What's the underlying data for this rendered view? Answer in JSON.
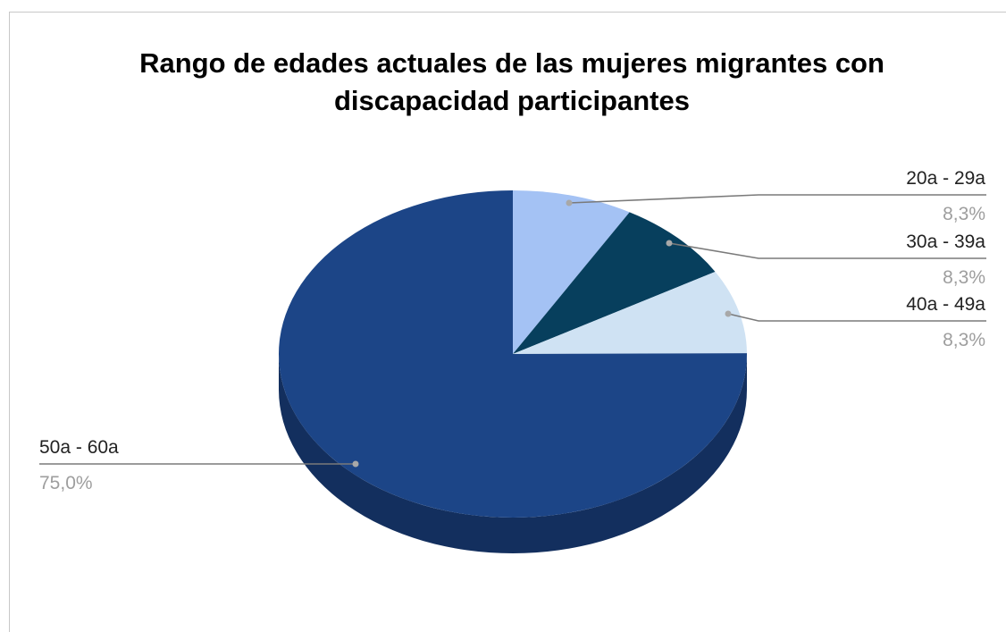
{
  "chart_data": {
    "type": "pie",
    "title_lines": [
      "Rango de edades actuales de las mujeres migrantes con",
      "discapacidad participantes"
    ],
    "three_d": true,
    "start_angle_deg": 0,
    "direction": "clockwise",
    "slices": [
      {
        "label": "20a - 29a",
        "value": 8.3,
        "percent_label": "8,3%",
        "color": "#a4c2f4",
        "side_color": "#7f9bcf"
      },
      {
        "label": "30a - 39a",
        "value": 8.3,
        "percent_label": "8,3%",
        "color": "#073f5d",
        "side_color": "#042b40"
      },
      {
        "label": "40a - 49a",
        "value": 8.3,
        "percent_label": "8,3%",
        "color": "#cfe2f3",
        "side_color": "#a9bccc"
      },
      {
        "label": "50a - 60a",
        "value": 75.0,
        "percent_label": "75,0%",
        "color": "#1c4587",
        "side_color": "#132f5e"
      }
    ],
    "leader_line_color": "#7a7a7a",
    "leader_dot_color": "#a8a8a8",
    "legend": "labels-with-leader-lines"
  }
}
